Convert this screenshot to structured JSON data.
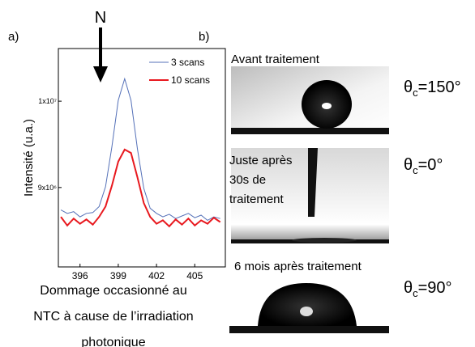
{
  "chart_data": {
    "type": "line",
    "panel_label": "a)",
    "annotation": "N",
    "ylabel": "Intensité (u.a.)",
    "caption": [
      "Dommage occasionné au",
      "NTC à cause de l’irradiation",
      "photonique"
    ],
    "x": [
      394.5,
      395,
      395.5,
      396,
      396.5,
      397,
      397.5,
      398,
      398.5,
      399,
      399.5,
      400,
      400.5,
      401,
      401.5,
      402,
      402.5,
      403,
      403.5,
      404,
      404.5,
      405,
      405.5,
      406,
      406.5,
      407
    ],
    "series": [
      {
        "name": "3 scans",
        "color": "#5470b8",
        "values": [
          8740000,
          8700000,
          8720000,
          8660000,
          8700000,
          8710000,
          8780000,
          9010000,
          9470000,
          10010000,
          10260000,
          10010000,
          9450000,
          8990000,
          8760000,
          8700000,
          8660000,
          8690000,
          8640000,
          8670000,
          8700000,
          8650000,
          8680000,
          8620000,
          8660000,
          8640000
        ]
      },
      {
        "name": "10 scans",
        "color": "#e8191f",
        "values": [
          8660000,
          8560000,
          8640000,
          8580000,
          8630000,
          8570000,
          8660000,
          8780000,
          9020000,
          9300000,
          9440000,
          9400000,
          9120000,
          8820000,
          8660000,
          8580000,
          8620000,
          8550000,
          8630000,
          8570000,
          8640000,
          8560000,
          8620000,
          8580000,
          8650000,
          8600000
        ]
      }
    ],
    "xlim": [
      394.3,
      407.4
    ],
    "xticks": [
      396,
      399,
      402,
      405
    ],
    "ylim": [
      8080000,
      10610000
    ],
    "yticks": [
      {
        "value": 9000000,
        "label": "9x10⁶"
      },
      {
        "value": 10000000,
        "label": "1x10⁷"
      }
    ],
    "legend": "upper right"
  },
  "panel_b": {
    "label": "b)",
    "images": [
      {
        "caption": [
          "Avant traitement"
        ],
        "angle": {
          "symbol": "θ",
          "sub": "c",
          "rest": "=150°"
        }
      },
      {
        "caption": [
          "Juste après",
          "30s de",
          "traitement"
        ],
        "angle": {
          "symbol": "θ",
          "sub": "c",
          "rest": "=0°"
        }
      },
      {
        "caption": [
          "6 mois après traitement"
        ],
        "angle": {
          "symbol": "θ",
          "sub": "c",
          "rest": "=90°"
        }
      }
    ]
  }
}
